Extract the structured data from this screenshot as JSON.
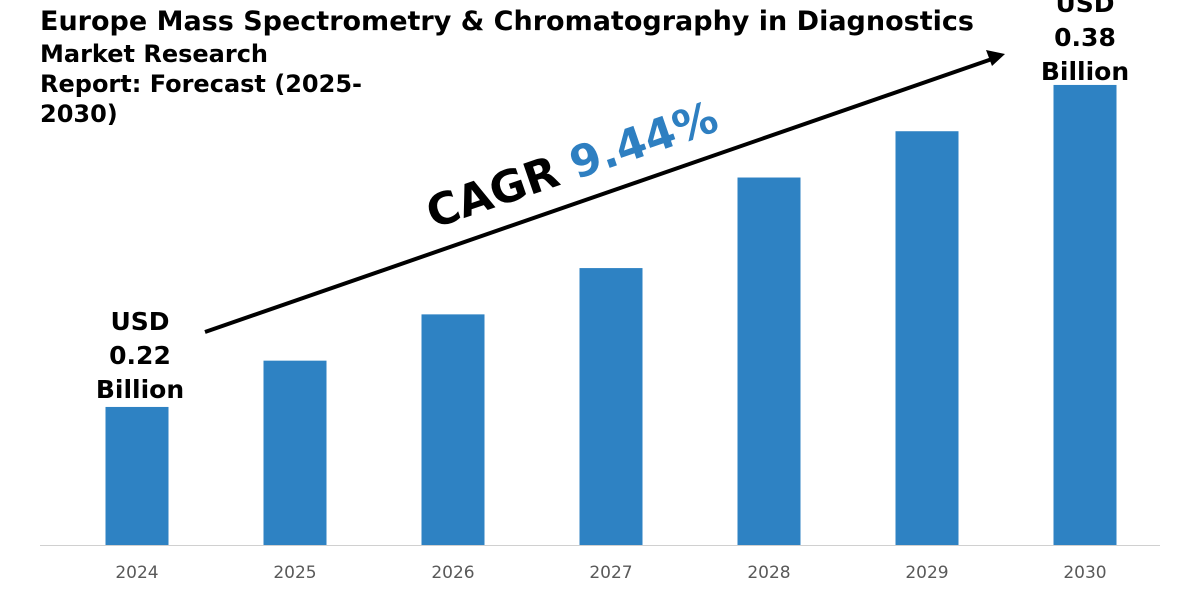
{
  "chart_data": {
    "type": "bar",
    "title": "Europe Mass Spectrometry & Chromatography in Diagnostics",
    "subtitle": "Market Research Report: Forecast (2025-2030)",
    "categories": [
      "2024",
      "2025",
      "2026",
      "2027",
      "2028",
      "2029",
      "2030"
    ],
    "values": [
      0.22,
      0.243,
      0.266,
      0.289,
      0.334,
      0.357,
      0.38
    ],
    "unit": "USD Billion",
    "annotations": {
      "start": [
        "USD",
        "0.22",
        "Billion"
      ],
      "end": [
        "USD",
        "0.38",
        "Billion"
      ],
      "cagr_label": "CAGR",
      "cagr_value": "9.44%"
    },
    "grid": false,
    "legend": "none",
    "colors": {
      "bar": "#2e82c3",
      "cagr": "#2e7fc1",
      "axis": "#d0d0d0",
      "tick": "#595959"
    }
  }
}
